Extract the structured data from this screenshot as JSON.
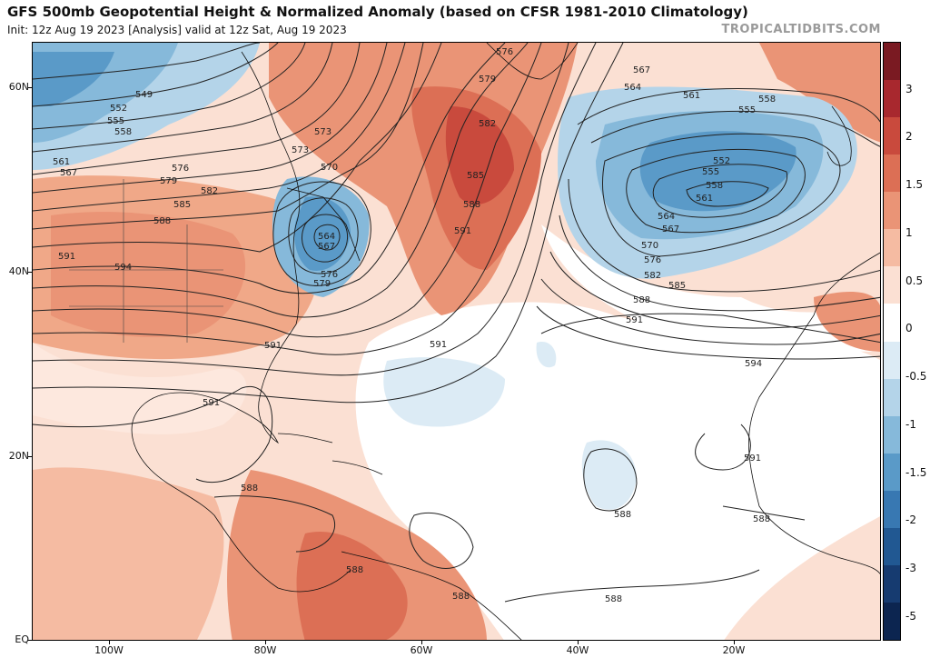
{
  "header": {
    "title": "GFS 500mb Geopotential Height & Normalized Anomaly (based on CFSR 1981-2010 Climatology)",
    "subtitle": "Init: 12z Aug 19 2023   [Analysis]   valid at 12z Sat, Aug 19 2023",
    "brand": "TROPICALTIDBITS.COM"
  },
  "axes": {
    "lat_labels": [
      "60N",
      "40N",
      "20N",
      "EQ"
    ],
    "lon_labels": [
      "100W",
      "80W",
      "60W",
      "40W",
      "20W"
    ]
  },
  "colorbar": {
    "labels": [
      "3",
      "2",
      "1.5",
      "1",
      "0.5",
      "0",
      "-0.5",
      "-1",
      "-1.5",
      "-2",
      "-3",
      "-5"
    ],
    "colors": [
      "#7a1a22",
      "#a8282e",
      "#c94a3d",
      "#dc6f55",
      "#ea9476",
      "#f5bba2",
      "#fbe0d3",
      "#ffffff",
      "#dcebf5",
      "#b4d4e9",
      "#86b9da",
      "#5a9ac8",
      "#3878b2",
      "#215892",
      "#163b70",
      "#0c2550"
    ]
  },
  "contour_labels": [
    "549",
    "552",
    "555",
    "558",
    "561",
    "564",
    "567",
    "570",
    "573",
    "576",
    "579",
    "582",
    "585",
    "588",
    "591",
    "594"
  ],
  "map_labels": {
    "c549": "549",
    "c552": "552",
    "c555": "555",
    "c558": "558",
    "c561": "561",
    "c567": "567",
    "c573": "573",
    "c570": "570",
    "c576": "576",
    "c579": "579",
    "c582": "582",
    "c585": "585",
    "c588": "588",
    "c591": "591",
    "c594": "594",
    "c564": "564"
  }
}
